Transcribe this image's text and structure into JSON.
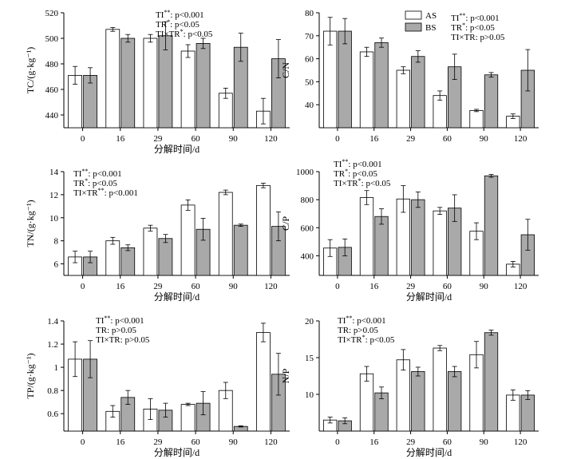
{
  "colors": {
    "AS": "#ffffff",
    "BS": "#a9a9a9",
    "axis": "#000000"
  },
  "legend": {
    "items": [
      {
        "key": "AS",
        "label": "AS"
      },
      {
        "key": "BS",
        "label": "BS"
      }
    ]
  },
  "chart_data": [
    {
      "id": "tc",
      "type": "bar",
      "categories": [
        "0",
        "16",
        "29",
        "60",
        "90",
        "120"
      ],
      "xlabel": "分解时间/d",
      "ylabel": "TC/(g·kg⁻¹)",
      "ylim": [
        430,
        520
      ],
      "yticks": [
        440,
        460,
        480,
        500,
        520
      ],
      "series": [
        {
          "name": "AS",
          "values": [
            471,
            507,
            500,
            490,
            457,
            443
          ],
          "errors": [
            7,
            1.5,
            3,
            5,
            4,
            10
          ]
        },
        {
          "name": "BS",
          "values": [
            471,
            500,
            502,
            496,
            493,
            484
          ],
          "errors": [
            6,
            3,
            11,
            4,
            11,
            15
          ]
        }
      ],
      "stats": [
        {
          "label": "TI",
          "sup": "**",
          "text": ": p<0.001"
        },
        {
          "label": "TR",
          "sup": "*",
          "text": ": p<0.05"
        },
        {
          "label": "TI×TR",
          "sup": "*",
          "text": ": p<0.05"
        }
      ]
    },
    {
      "id": "cn",
      "type": "bar",
      "categories": [
        "0",
        "16",
        "29",
        "60",
        "90",
        "120"
      ],
      "xlabel": "",
      "ylabel": "C/N",
      "ylim": [
        30,
        80
      ],
      "yticks": [
        40,
        50,
        60,
        70,
        80
      ],
      "series": [
        {
          "name": "AS",
          "values": [
            72,
            63,
            55,
            44,
            37.5,
            35
          ],
          "errors": [
            6,
            2,
            1.5,
            2,
            0.5,
            1
          ]
        },
        {
          "name": "BS",
          "values": [
            72,
            67,
            61,
            56.5,
            53,
            55
          ],
          "errors": [
            5.5,
            2,
            2.5,
            5.5,
            1,
            9
          ]
        }
      ],
      "stats": [
        {
          "label": "TI",
          "sup": "**",
          "text": ": p<0.001"
        },
        {
          "label": "TR",
          "sup": "*",
          "text": ": p<0.05"
        },
        {
          "label": "TI×TR",
          "sup": "",
          "text": ": p>0.05"
        }
      ]
    },
    {
      "id": "tn",
      "type": "bar",
      "categories": [
        "0",
        "16",
        "29",
        "60",
        "90",
        "120"
      ],
      "xlabel": "分解时间/d",
      "ylabel": "TN/(g·kg⁻¹)",
      "ylim": [
        5,
        14
      ],
      "yticks": [
        6,
        8,
        10,
        12,
        14
      ],
      "series": [
        {
          "name": "AS",
          "values": [
            6.6,
            8.0,
            9.1,
            11.1,
            12.2,
            12.8
          ],
          "errors": [
            0.5,
            0.3,
            0.25,
            0.45,
            0.2,
            0.2
          ]
        },
        {
          "name": "BS",
          "values": [
            6.6,
            7.4,
            8.2,
            9.0,
            9.35,
            9.25
          ],
          "errors": [
            0.5,
            0.25,
            0.35,
            0.95,
            0.1,
            1.25
          ]
        }
      ],
      "stats": [
        {
          "label": "TI",
          "sup": "**",
          "text": ": p<0.001"
        },
        {
          "label": "TR",
          "sup": "*",
          "text": ": p<0.05"
        },
        {
          "label": "TI×TR",
          "sup": "**",
          "text": ": p<0.001"
        }
      ]
    },
    {
      "id": "cp",
      "type": "bar",
      "categories": [
        "0",
        "16",
        "29",
        "60",
        "90",
        "120"
      ],
      "xlabel": "分解时间/d",
      "ylabel": "C/P",
      "ylim": [
        260,
        1000
      ],
      "yticks": [
        400,
        600,
        800,
        1000
      ],
      "series": [
        {
          "name": "AS",
          "values": [
            455,
            815,
            805,
            720,
            575,
            340
          ],
          "errors": [
            60,
            50,
            95,
            25,
            60,
            20
          ]
        },
        {
          "name": "BS",
          "values": [
            460,
            680,
            800,
            740,
            970,
            550
          ],
          "errors": [
            60,
            55,
            55,
            95,
            10,
            110
          ]
        }
      ],
      "stats": [
        {
          "label": "TI",
          "sup": "**",
          "text": ": p<0.001"
        },
        {
          "label": "TR",
          "sup": "*",
          "text": ": p<0.05"
        },
        {
          "label": "TI×TR",
          "sup": "*",
          "text": ": p<0.05"
        }
      ]
    },
    {
      "id": "tp",
      "type": "bar",
      "categories": [
        "0",
        "16",
        "29",
        "60",
        "90",
        "120"
      ],
      "xlabel": "分解时间/d",
      "ylabel": "TP/(g·kg⁻¹)",
      "ylim": [
        0.45,
        1.4
      ],
      "yticks": [
        0.6,
        0.8,
        1.0,
        1.2,
        1.4
      ],
      "series": [
        {
          "name": "AS",
          "values": [
            1.07,
            0.62,
            0.64,
            0.68,
            0.8,
            1.3
          ],
          "errors": [
            0.15,
            0.05,
            0.09,
            0.01,
            0.07,
            0.08
          ]
        },
        {
          "name": "BS",
          "values": [
            1.07,
            0.74,
            0.63,
            0.69,
            0.49,
            0.94
          ],
          "errors": [
            0.16,
            0.06,
            0.06,
            0.1,
            0.005,
            0.18
          ]
        }
      ],
      "stats": [
        {
          "label": "TI",
          "sup": "**",
          "text": ": p<0.001"
        },
        {
          "label": "TR",
          "sup": "",
          "text": ": p>0.05"
        },
        {
          "label": "TI×TR",
          "sup": "",
          "text": ": p>0.05"
        }
      ]
    },
    {
      "id": "np",
      "type": "bar",
      "categories": [
        "0",
        "16",
        "29",
        "60",
        "90",
        "120"
      ],
      "xlabel": "分解时间/d",
      "ylabel": "N/P",
      "ylim": [
        5,
        20
      ],
      "yticks": [
        10,
        15,
        20
      ],
      "series": [
        {
          "name": "AS",
          "values": [
            6.5,
            12.8,
            14.7,
            16.3,
            15.4,
            9.9
          ],
          "errors": [
            0.4,
            1.0,
            1.4,
            0.35,
            1.8,
            0.7
          ]
        },
        {
          "name": "BS",
          "values": [
            6.4,
            10.2,
            13.1,
            13.1,
            18.4,
            9.9
          ],
          "errors": [
            0.4,
            0.8,
            0.6,
            0.7,
            0.35,
            0.6
          ]
        }
      ],
      "stats": [
        {
          "label": "TI",
          "sup": "**",
          "text": ": p<0.001"
        },
        {
          "label": "TR",
          "sup": "",
          "text": ": p>0.05"
        },
        {
          "label": "TI×TR",
          "sup": "*",
          "text": ": p<0.05"
        }
      ]
    }
  ]
}
